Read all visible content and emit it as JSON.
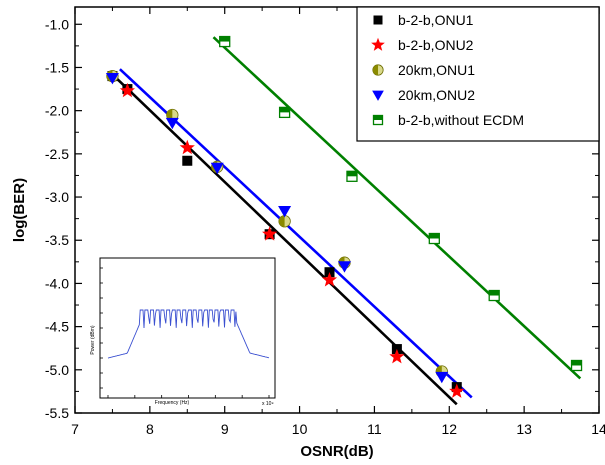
{
  "chart_data": {
    "type": "scatter",
    "xlabel": "OSNR(dB)",
    "ylabel": "log(BER)",
    "xlim": [
      7,
      14
    ],
    "ylim": [
      -5.5,
      -0.8
    ],
    "xticks": [
      7,
      8,
      9,
      10,
      11,
      12,
      13,
      14
    ],
    "xtick_labels": [
      "7",
      "8",
      "9",
      "10",
      "11",
      "12",
      "13",
      "14"
    ],
    "yticks": [
      -5.5,
      -5.0,
      -4.5,
      -4.0,
      -3.5,
      -3.0,
      -2.5,
      -2.0,
      -1.5,
      -1.0
    ],
    "ytick_labels": [
      "-5.5",
      "-5.0",
      "-4.5",
      "-4.0",
      "-3.5",
      "-3.0",
      "-2.5",
      "-2.0",
      "-1.5",
      "-1.0"
    ],
    "legend_position": "top-right",
    "grid": false,
    "series": [
      {
        "name": "b-2-b,ONU1",
        "marker": "square",
        "color": "#000000",
        "x": [
          7.5,
          7.7,
          8.5,
          9.6,
          10.4,
          11.3,
          12.1
        ],
        "y": [
          -1.6,
          -1.75,
          -2.58,
          -3.43,
          -3.87,
          -4.76,
          -5.2
        ]
      },
      {
        "name": "b-2-b,ONU2",
        "marker": "star",
        "color": "#ff0000",
        "x": [
          7.7,
          8.5,
          9.6,
          10.4,
          11.3,
          12.1
        ],
        "y": [
          -1.77,
          -2.43,
          -3.43,
          -3.96,
          -4.85,
          -5.25
        ]
      },
      {
        "name": "20km,ONU1",
        "marker": "half-circle",
        "color": "#b5b500",
        "x": [
          7.5,
          8.3,
          8.9,
          9.8,
          10.6,
          11.9
        ],
        "y": [
          -1.6,
          -2.05,
          -2.65,
          -3.28,
          -3.76,
          -5.02
        ]
      },
      {
        "name": "20km,ONU2",
        "marker": "triangle-down",
        "color": "#0000ff",
        "x": [
          7.5,
          8.3,
          8.9,
          9.8,
          10.6,
          11.9
        ],
        "y": [
          -1.62,
          -2.14,
          -2.66,
          -3.16,
          -3.8,
          -5.08
        ]
      },
      {
        "name": "b-2-b,without ECDM",
        "marker": "half-square",
        "color": "#008000",
        "x": [
          9.0,
          9.8,
          10.7,
          11.8,
          12.6,
          13.7
        ],
        "y": [
          -1.2,
          -2.02,
          -2.76,
          -3.48,
          -4.14,
          -4.95
        ]
      }
    ],
    "fits": [
      {
        "series": "b-2-b (ONU1 & ONU2) fit",
        "color": "#000000",
        "x": [
          7.5,
          12.1
        ],
        "y": [
          -1.58,
          -5.4
        ]
      },
      {
        "series": "20km fit",
        "color": "#0000ff",
        "x": [
          7.6,
          12.3
        ],
        "y": [
          -1.52,
          -5.32
        ]
      },
      {
        "series": "without ECDM fit",
        "color": "#008000",
        "x": [
          8.85,
          13.75
        ],
        "y": [
          -1.15,
          -5.1
        ]
      }
    ],
    "inset": {
      "type": "line",
      "ylabel": "Power (dBm)",
      "xlabel": "Frequency (Hz)",
      "xlim_note": "x 10⁹"
    }
  }
}
